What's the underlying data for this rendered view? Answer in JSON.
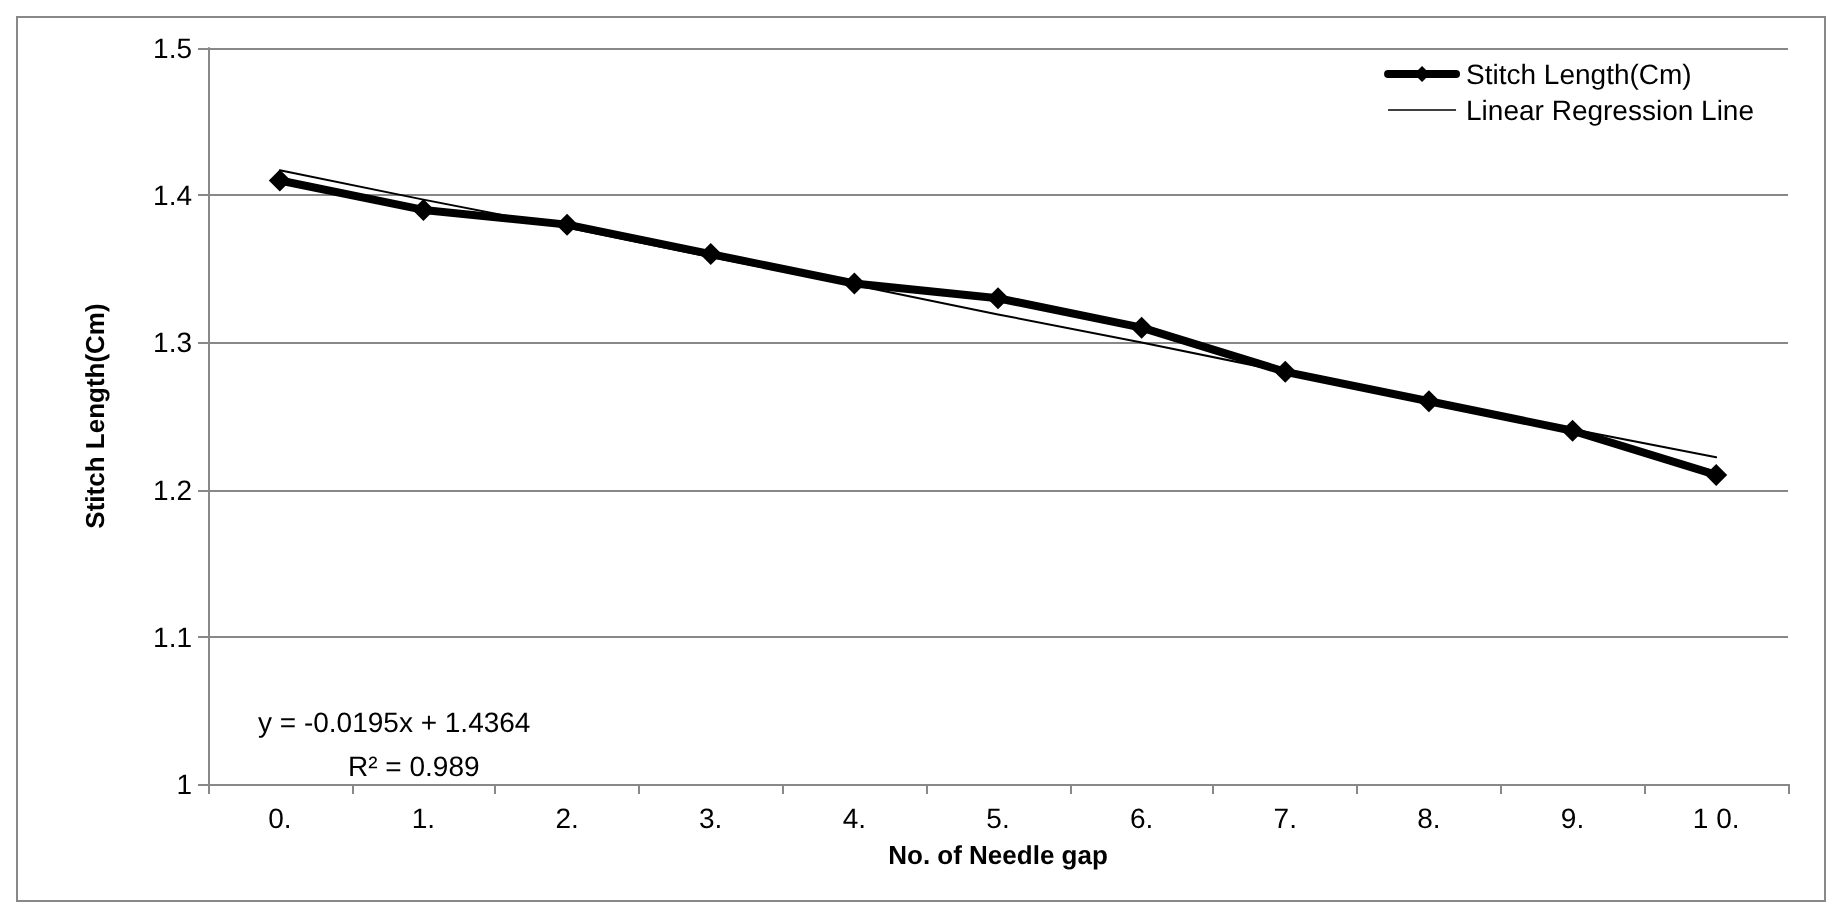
{
  "chart_data": {
    "type": "line",
    "xlabel": "No. of Needle gap",
    "ylabel": "Stitch Length(Cm)",
    "categories": [
      "0.",
      "1.",
      "2.",
      "3.",
      "4.",
      "5.",
      "6.",
      "7.",
      "8.",
      "9.",
      "1 0."
    ],
    "series": [
      {
        "name": "Stitch Length(Cm)",
        "color": "#000000",
        "marker": "diamond",
        "values": [
          1.41,
          1.39,
          1.38,
          1.36,
          1.34,
          1.33,
          1.31,
          1.28,
          1.26,
          1.24,
          1.21
        ]
      },
      {
        "name": "Linear Regression Line",
        "color": "#000000",
        "marker": "none",
        "values": [
          1.417,
          1.397,
          1.378,
          1.358,
          1.339,
          1.319,
          1.3,
          1.28,
          1.261,
          1.241,
          1.222
        ]
      }
    ],
    "ylim": [
      1,
      1.5
    ],
    "yticks": [
      1,
      1.1,
      1.2,
      1.3,
      1.4,
      1.5
    ],
    "grid": "y",
    "legend": "top right",
    "annotations": [
      "y = -0.0195x + 1.4364",
      "R² = 0.989"
    ]
  }
}
